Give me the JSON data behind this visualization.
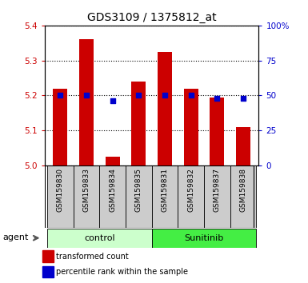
{
  "title": "GDS3109 / 1375812_at",
  "samples": [
    "GSM159830",
    "GSM159833",
    "GSM159834",
    "GSM159835",
    "GSM159831",
    "GSM159832",
    "GSM159837",
    "GSM159838"
  ],
  "bar_values": [
    5.22,
    5.36,
    5.025,
    5.24,
    5.325,
    5.22,
    5.195,
    5.11
  ],
  "dot_values": [
    50,
    50,
    46,
    50,
    50,
    50,
    48,
    48
  ],
  "groups": [
    {
      "label": "control",
      "indices": [
        0,
        1,
        2,
        3
      ],
      "color": "#ccffcc"
    },
    {
      "label": "Sunitinib",
      "indices": [
        4,
        5,
        6,
        7
      ],
      "color": "#44ee44"
    }
  ],
  "ylim_left": [
    5.0,
    5.4
  ],
  "ylim_right": [
    0,
    100
  ],
  "yticks_left": [
    5.0,
    5.1,
    5.2,
    5.3,
    5.4
  ],
  "yticks_right": [
    0,
    25,
    50,
    75,
    100
  ],
  "bar_color": "#cc0000",
  "dot_color": "#0000cc",
  "bar_width": 0.55,
  "background_color": "#ffffff",
  "plot_bg_color": "#ffffff",
  "ylabel_left_color": "#cc0000",
  "ylabel_right_color": "#0000cc",
  "agent_label": "agent",
  "legend_bar_label": "transformed count",
  "legend_dot_label": "percentile rank within the sample",
  "sample_box_color": "#cccccc",
  "title_fontsize": 10,
  "tick_fontsize": 7.5,
  "sample_fontsize": 6.5,
  "group_fontsize": 8,
  "legend_fontsize": 7
}
